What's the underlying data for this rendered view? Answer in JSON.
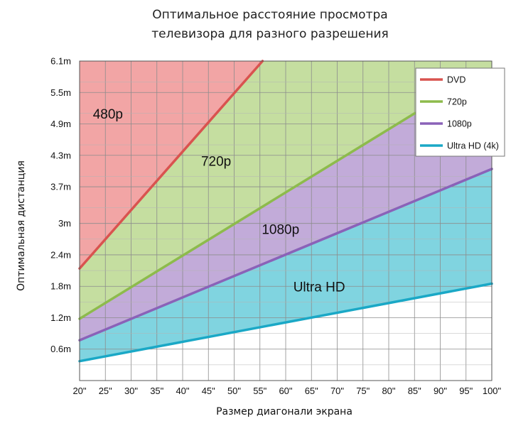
{
  "chart_data": {
    "type": "area",
    "title_lines": [
      "Оптимальное расстояние просмотра",
      "телевизора для разного разрешения"
    ],
    "xlabel": "Размер диагонали экрана",
    "ylabel": "Оптимальная дистанция",
    "x": [
      20,
      25,
      30,
      35,
      40,
      45,
      50,
      55,
      60,
      65,
      70,
      75,
      80,
      85,
      90,
      95,
      100
    ],
    "x_tick_labels": [
      "20\"",
      "25\"",
      "30\"",
      "35\"",
      "40\"",
      "45\"",
      "50\"",
      "55\"",
      "60\"",
      "65\"",
      "70\"",
      "75\"",
      "80\"",
      "85\"",
      "90\"",
      "95\"",
      "100\""
    ],
    "xlim": [
      20,
      100
    ],
    "ylim": [
      0,
      6.1
    ],
    "y_ticks": [
      0.6,
      1.2,
      1.8,
      2.4,
      3.0,
      3.7,
      4.3,
      4.9,
      5.5,
      6.1
    ],
    "y_tick_labels": [
      "0.6m",
      "1.2m",
      "1.8m",
      "2.4m",
      "3m",
      "3.7m",
      "4.3m",
      "4.9m",
      "5.5m",
      "6.1m"
    ],
    "grid": true,
    "legend_position": "top-right",
    "series": [
      {
        "name": "DVD",
        "color": "#d9534f",
        "fill": "#f2a5a5",
        "points": [
          [
            20,
            2.14
          ],
          [
            55.5,
            6.1
          ]
        ]
      },
      {
        "name": "720p",
        "color": "#8dbb4c",
        "fill": "#c5dea0",
        "points": [
          [
            20,
            1.18
          ],
          [
            85,
            5.1
          ],
          [
            88.5,
            5.2
          ]
        ]
      },
      {
        "name": "1080p",
        "color": "#8a62b8",
        "fill": "#c2abd9",
        "points": [
          [
            20,
            0.77
          ],
          [
            100,
            4.04
          ]
        ]
      },
      {
        "name": "Ultra HD (4k)",
        "color": "#1aa8c6",
        "fill": "#80d4e0",
        "points": [
          [
            20,
            0.37
          ],
          [
            100,
            1.85
          ]
        ]
      }
    ],
    "zone_labels": [
      {
        "text": "480p",
        "x": 25.5,
        "y": 5.0
      },
      {
        "text": "720p",
        "x": 46.5,
        "y": 4.1
      },
      {
        "text": "1080p",
        "x": 59,
        "y": 2.8
      },
      {
        "text": "Ultra HD",
        "x": 66.5,
        "y": 1.7
      }
    ]
  }
}
